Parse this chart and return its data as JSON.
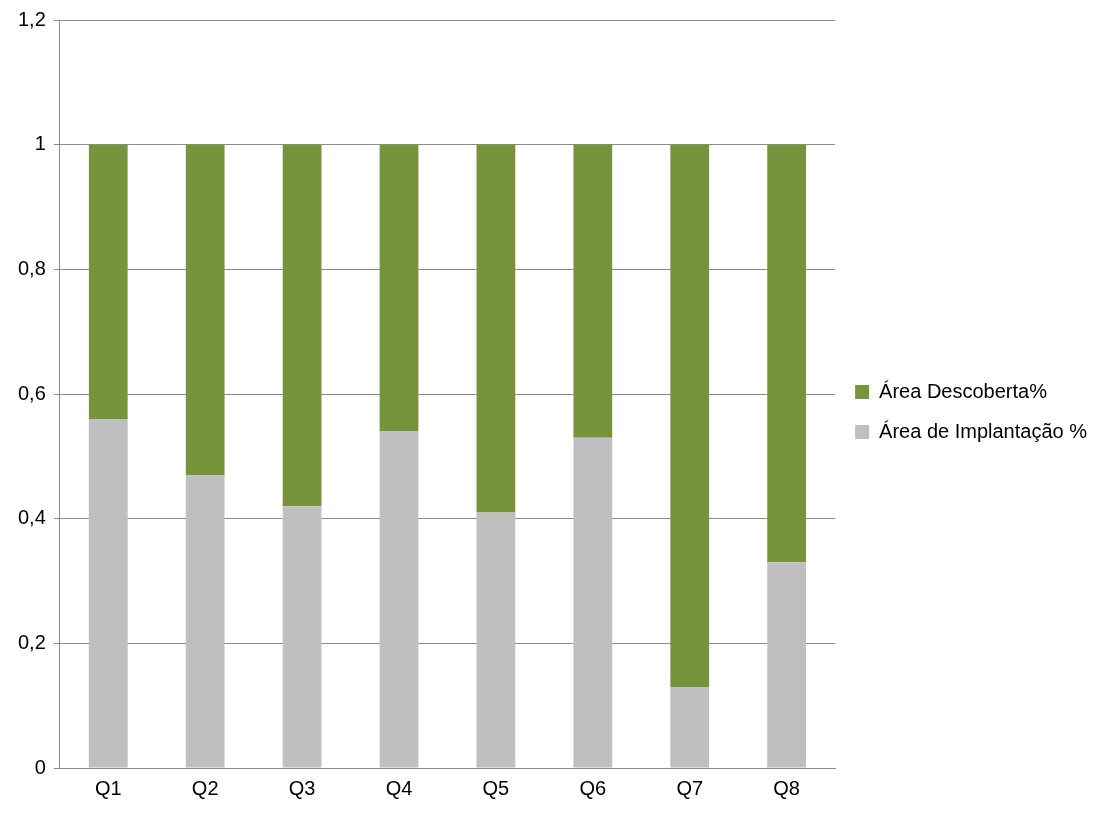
{
  "chart_data": {
    "type": "bar",
    "stacked": true,
    "categories": [
      "Q1",
      "Q2",
      "Q3",
      "Q4",
      "Q5",
      "Q6",
      "Q7",
      "Q8"
    ],
    "series": [
      {
        "name": "Área de Implantação %",
        "color": "#bfbfbf",
        "values": [
          0.56,
          0.47,
          0.42,
          0.54,
          0.41,
          0.53,
          0.13,
          0.33
        ]
      },
      {
        "name": "Área Descoberta%",
        "color": "#77933c",
        "values": [
          0.44,
          0.53,
          0.58,
          0.46,
          0.59,
          0.47,
          0.87,
          0.67
        ]
      }
    ],
    "ylim": [
      0,
      1.2
    ],
    "yticks": [
      0,
      {
        "value": 0.2,
        "label": "0,2"
      },
      {
        "value": 0.4,
        "label": "0,4"
      },
      {
        "value": 0.6,
        "label": "0,6"
      },
      {
        "value": 0.8,
        "label": "0,8"
      },
      1,
      {
        "value": 1.2,
        "label": "1,2"
      }
    ],
    "grid": "y",
    "legend": "right"
  }
}
